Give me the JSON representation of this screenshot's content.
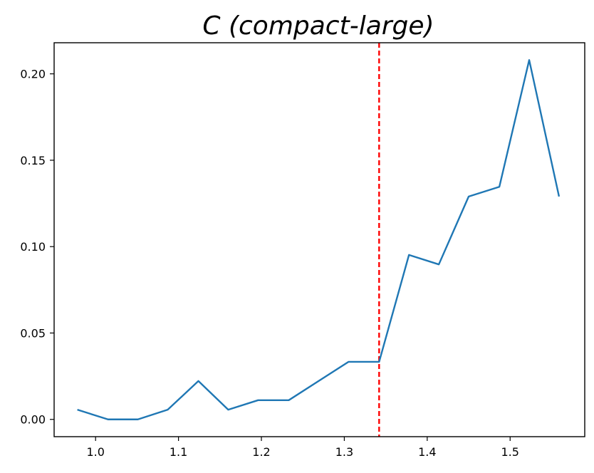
{
  "chart_data": {
    "type": "line",
    "title": "C (compact-large)",
    "xlabel": "",
    "ylabel": "",
    "xlim": [
      0.95,
      1.59
    ],
    "ylim": [
      -0.01,
      0.218
    ],
    "xticks": [
      1.0,
      1.1,
      1.2,
      1.3,
      1.4,
      1.5
    ],
    "xtick_labels": [
      "1.0",
      "1.1",
      "1.2",
      "1.3",
      "1.4",
      "1.5"
    ],
    "yticks": [
      0.0,
      0.05,
      0.1,
      0.15,
      0.2
    ],
    "ytick_labels": [
      "0.00",
      "0.05",
      "0.10",
      "0.15",
      "0.20"
    ],
    "grid": false,
    "legend": "none",
    "series": [
      {
        "color": "#1f77b4",
        "x": [
          0.978,
          1.015,
          1.051,
          1.087,
          1.124,
          1.16,
          1.196,
          1.233,
          1.269,
          1.305,
          1.342,
          1.378,
          1.414,
          1.45,
          1.487,
          1.523,
          1.559
        ],
        "y": [
          0.0056,
          0.0,
          0.0,
          0.0056,
          0.0222,
          0.0056,
          0.0111,
          0.0111,
          0.0222,
          0.0333,
          0.0333,
          0.0952,
          0.0897,
          0.129,
          0.1346,
          0.208,
          0.129
        ]
      }
    ],
    "reference_lines": [
      {
        "orientation": "vertical",
        "x": 1.342,
        "color": "#ff0000",
        "style": "dashed"
      }
    ]
  }
}
